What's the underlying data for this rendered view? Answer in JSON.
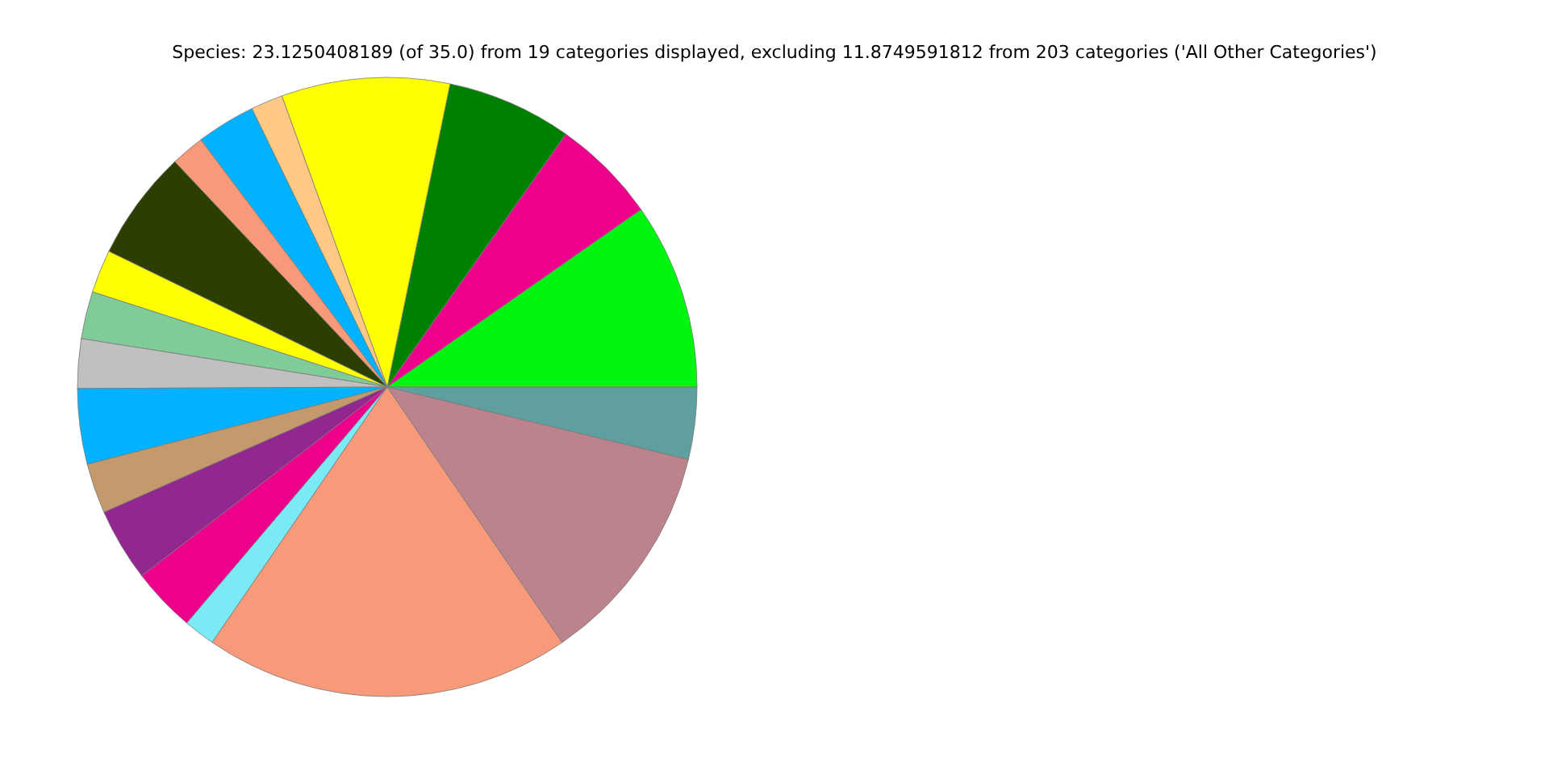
{
  "chart_data": {
    "type": "pie",
    "title": "Species: 23.1250408189 (of 35.0) from 19 categories displayed, excluding 11.8749591812 from 203 categories ('All Other Categories')",
    "categories": [
      null,
      null,
      null,
      null,
      null,
      null,
      null,
      null,
      null,
      null,
      null,
      null,
      null,
      null,
      null,
      null,
      null,
      null,
      null
    ],
    "values": [
      9.72,
      5.5,
      6.53,
      8.78,
      1.67,
      3.08,
      1.75,
      5.75,
      2.25,
      2.47,
      2.58,
      3.94,
      2.61,
      3.81,
      3.36,
      1.64,
      19.11,
      11.69,
      3.76
    ],
    "colors": [
      "#00f510",
      "#ec008c",
      "#008000",
      "#ffff00",
      "#ffc985",
      "#00b2ff",
      "#f89a7a",
      "#2d3f00",
      "#ffff00",
      "#80cc99",
      "#c0c0c0",
      "#00b2ff",
      "#c49a6c",
      "#92278f",
      "#ec008c",
      "#7ceaf5",
      "#f89a7a",
      "#bc838c",
      "#5f9f9f"
    ],
    "legend": false
  }
}
